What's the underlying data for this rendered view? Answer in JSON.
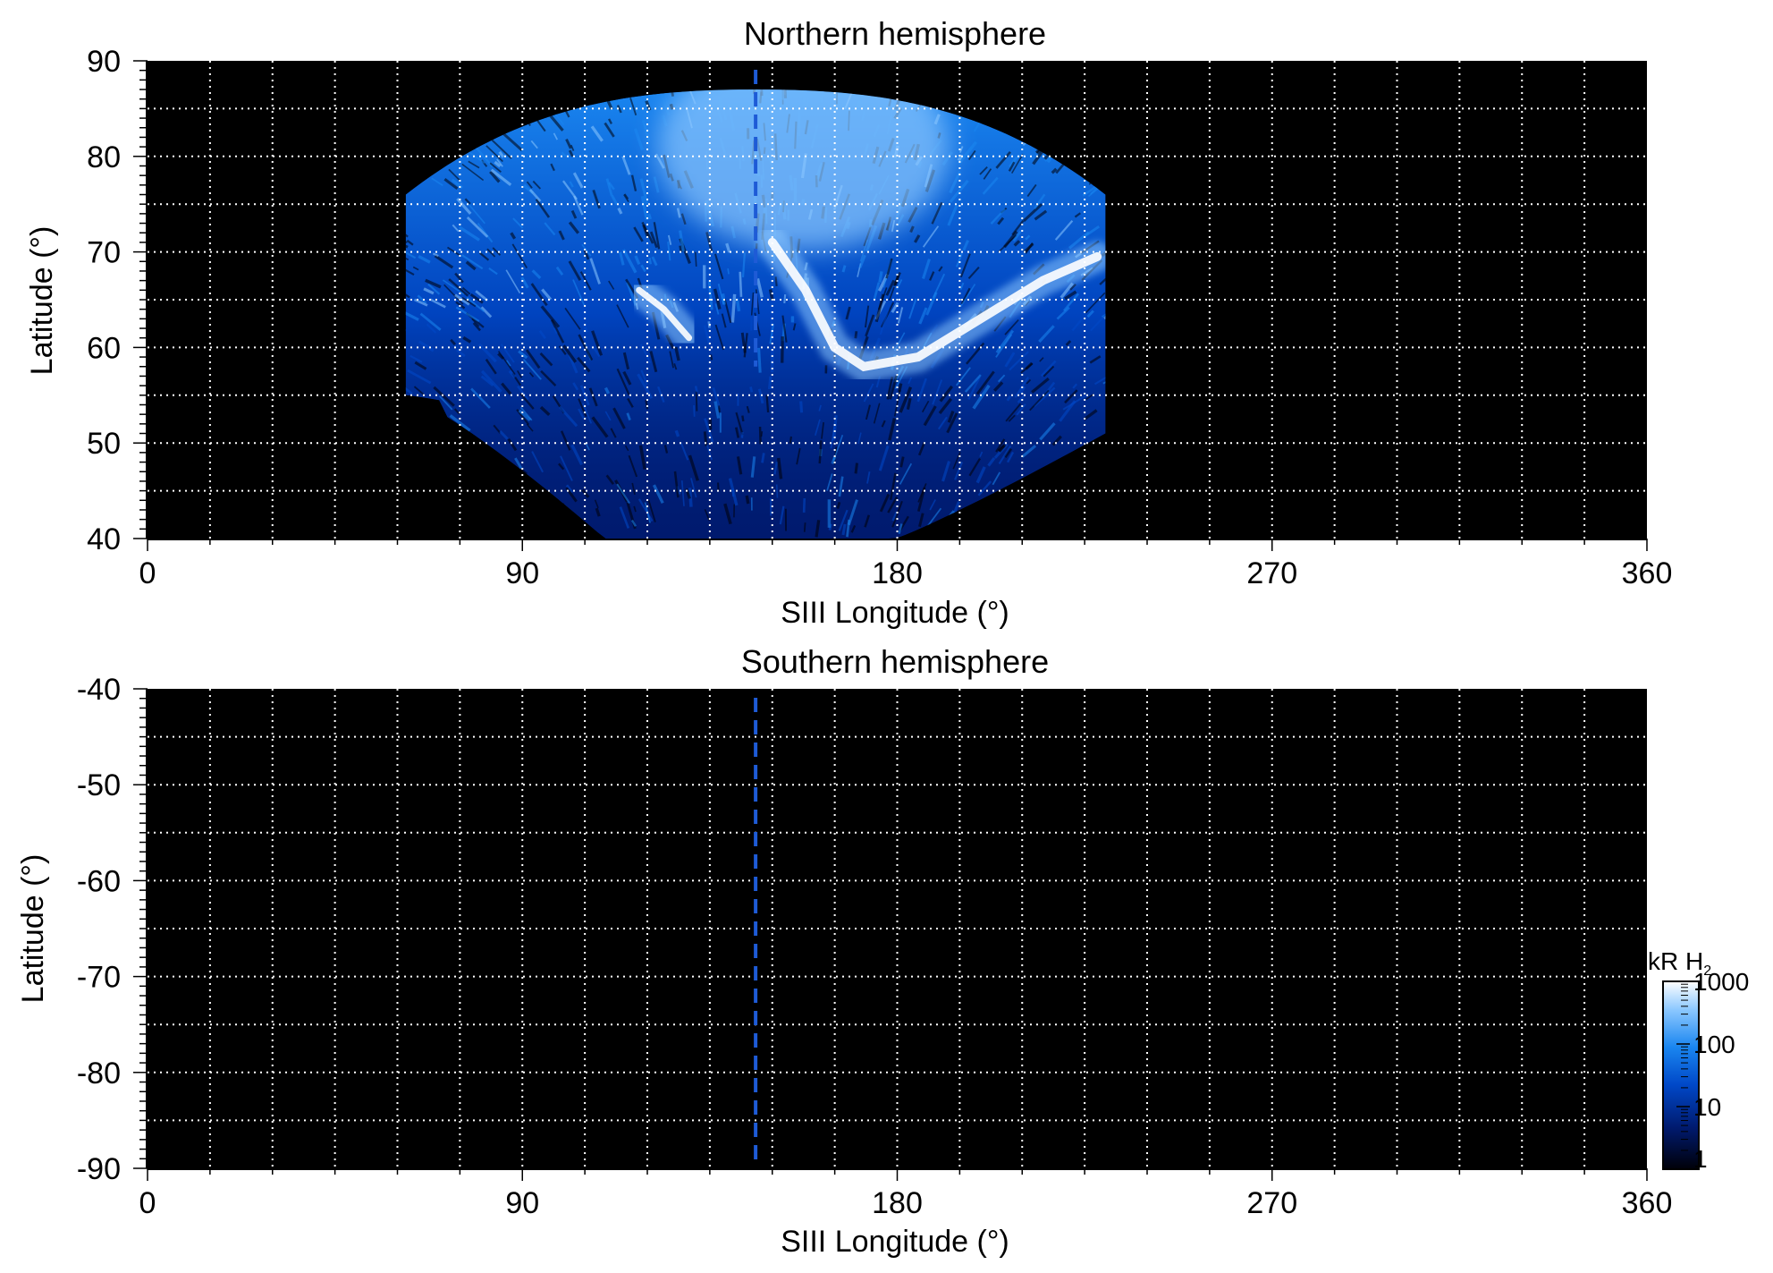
{
  "figure_background": "#ffffff",
  "panel_background": "#000000",
  "colormap": [
    "#000008",
    "#001a6e",
    "#0048c8",
    "#1a86f0",
    "#8cc8ff",
    "#ffffff"
  ],
  "chart_data": [
    {
      "type": "heatmap",
      "title": "Northern hemisphere",
      "xlabel": "SIII Longitude (°)",
      "ylabel": "Latitude (°)",
      "xlim": [
        0,
        360
      ],
      "ylim": [
        40,
        90
      ],
      "xticks": [
        0,
        90,
        180,
        270,
        360
      ],
      "xtick_labels": [
        "0",
        "90",
        "180",
        "270",
        "360"
      ],
      "yticks": [
        40,
        50,
        60,
        70,
        80,
        90
      ],
      "ytick_labels": [
        "40",
        "50",
        "60",
        "70",
        "80",
        "90"
      ],
      "grid": true,
      "grid_x_step": 15,
      "grid_y_step": 5,
      "reference_longitude": 146,
      "reference_line_style": "dashed blue",
      "emission_region": {
        "lon_range": [
          62,
          230
        ],
        "lat_range": [
          40,
          87
        ],
        "main_oval": [
          [
            130,
            61
          ],
          [
            124,
            64
          ],
          [
            118,
            66
          ],
          [
            150,
            71
          ],
          [
            158,
            66
          ],
          [
            165,
            60
          ],
          [
            172,
            58
          ],
          [
            185,
            59
          ],
          [
            200,
            63
          ],
          [
            215,
            67
          ],
          [
            228,
            69.5
          ]
        ],
        "bright_polar_lon": [
          145,
          170
        ],
        "bright_polar_lat": [
          75,
          87
        ]
      }
    },
    {
      "type": "heatmap",
      "title": "Southern hemisphere",
      "xlabel": "SIII Longitude (°)",
      "ylabel": "Latitude (°)",
      "xlim": [
        0,
        360
      ],
      "ylim": [
        -90,
        -40
      ],
      "xticks": [
        0,
        90,
        180,
        270,
        360
      ],
      "xtick_labels": [
        "0",
        "90",
        "180",
        "270",
        "360"
      ],
      "yticks": [
        -40,
        -50,
        -60,
        -70,
        -80,
        -90
      ],
      "ytick_labels": [
        "-40",
        "-50",
        "-60",
        "-70",
        "-80",
        "-90"
      ],
      "grid": true,
      "grid_x_step": 15,
      "grid_y_step": 5,
      "reference_longitude": 146,
      "reference_line_style": "dashed blue",
      "emission_region": null
    }
  ],
  "colorbar": {
    "label": "kR H",
    "label_subscript": "2",
    "scale": "log",
    "range": [
      1,
      1000
    ],
    "ticks": [
      1,
      10,
      100,
      1000
    ],
    "tick_labels": [
      "1",
      "10",
      "100",
      "1000"
    ]
  }
}
